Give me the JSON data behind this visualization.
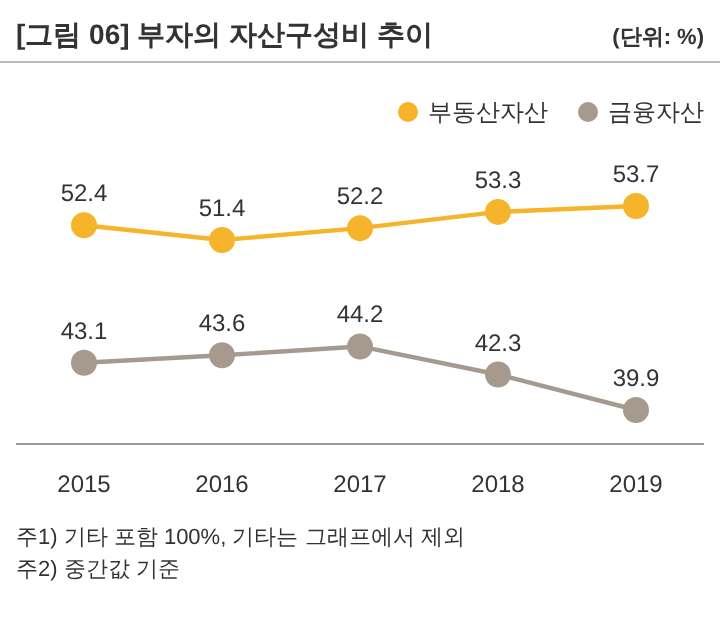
{
  "chart_data": {
    "type": "line",
    "title": "[그림 06] 부자의 자산구성비 추이",
    "subtitle": "(단위: %)",
    "categories": [
      "2015",
      "2016",
      "2017",
      "2018",
      "2019"
    ],
    "series": [
      {
        "name": "부동산자산",
        "color": "#f6b42a",
        "values": [
          52.4,
          51.4,
          52.2,
          53.3,
          53.7
        ]
      },
      {
        "name": "금융자산",
        "color": "#a69a8e",
        "values": [
          43.1,
          43.6,
          44.2,
          42.3,
          39.9
        ]
      }
    ],
    "data_labels": true,
    "marker": "circle",
    "legend": "top right",
    "annotations": [
      "주1) 기타 포함 100%, 기타는 그래프에서 제외",
      "주2) 중간값 기준"
    ]
  }
}
